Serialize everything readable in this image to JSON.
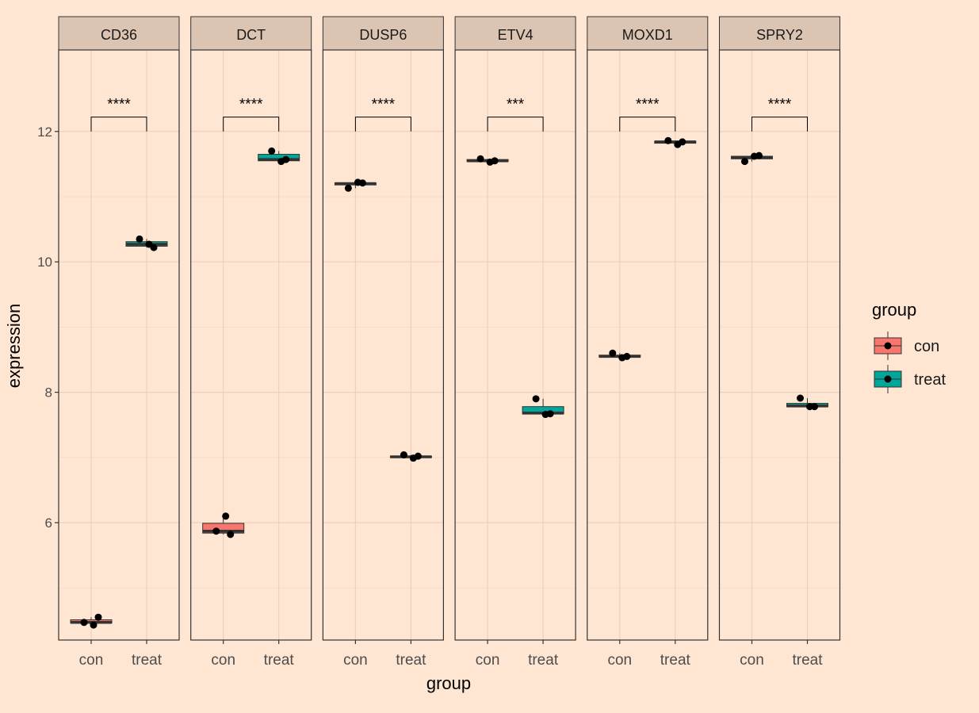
{
  "chart_data": {
    "type": "box",
    "xlabel": "group",
    "ylabel": "expression",
    "categories": [
      "con",
      "treat"
    ],
    "ylim": [
      4.2,
      13.25
    ],
    "yticks": [
      "6",
      "8",
      "10",
      "12"
    ],
    "grid": true,
    "legend": {
      "title": "group",
      "position": "right",
      "items": [
        {
          "label": "con",
          "color": "#F8766D"
        },
        {
          "label": "treat",
          "color": "#00A699"
        }
      ]
    },
    "facets": [
      {
        "label": "CD36",
        "signif": "****",
        "groups": [
          {
            "name": "con",
            "box": [
              4.43,
              4.46,
              4.47,
              4.51,
              4.55
            ],
            "points": [
              4.47,
              4.43,
              4.55
            ]
          },
          {
            "name": "treat",
            "box": [
              10.22,
              10.24,
              10.27,
              10.31,
              10.35
            ],
            "points": [
              10.35,
              10.27,
              10.22
            ]
          }
        ]
      },
      {
        "label": "DCT",
        "signif": "****",
        "groups": [
          {
            "name": "con",
            "box": [
              5.82,
              5.84,
              5.87,
              5.99,
              6.1
            ],
            "points": [
              5.87,
              6.1,
              5.82
            ]
          },
          {
            "name": "treat",
            "box": [
              11.54,
              11.55,
              11.57,
              11.65,
              11.7
            ],
            "points": [
              11.7,
              11.54,
              11.57
            ]
          }
        ]
      },
      {
        "label": "DUSP6",
        "signif": "****",
        "groups": [
          {
            "name": "con",
            "box": [
              11.13,
              11.18,
              11.2,
              11.21,
              11.22
            ],
            "points": [
              11.13,
              11.22,
              11.21
            ]
          },
          {
            "name": "treat",
            "box": [
              6.99,
              7.0,
              7.01,
              7.02,
              7.04
            ],
            "points": [
              7.04,
              6.99,
              7.02
            ]
          }
        ]
      },
      {
        "label": "ETV4",
        "signif": "***",
        "groups": [
          {
            "name": "con",
            "box": [
              11.53,
              11.54,
              11.55,
              11.57,
              11.58
            ],
            "points": [
              11.58,
              11.53,
              11.55
            ]
          },
          {
            "name": "treat",
            "box": [
              7.66,
              7.67,
              7.68,
              7.78,
              7.9
            ],
            "points": [
              7.9,
              7.66,
              7.67
            ]
          }
        ]
      },
      {
        "label": "MOXD1",
        "signif": "****",
        "groups": [
          {
            "name": "con",
            "box": [
              8.53,
              8.54,
              8.55,
              8.57,
              8.6
            ],
            "points": [
              8.6,
              8.53,
              8.55
            ]
          },
          {
            "name": "treat",
            "box": [
              11.8,
              11.82,
              11.84,
              11.85,
              11.86
            ],
            "points": [
              11.86,
              11.8,
              11.84
            ]
          }
        ]
      },
      {
        "label": "SPRY2",
        "signif": "****",
        "groups": [
          {
            "name": "con",
            "box": [
              11.54,
              11.58,
              11.6,
              11.62,
              11.63
            ],
            "points": [
              11.54,
              11.62,
              11.63
            ]
          },
          {
            "name": "treat",
            "box": [
              7.77,
              7.78,
              7.79,
              7.83,
              7.91
            ],
            "points": [
              7.91,
              7.78,
              7.78
            ]
          }
        ]
      }
    ]
  }
}
